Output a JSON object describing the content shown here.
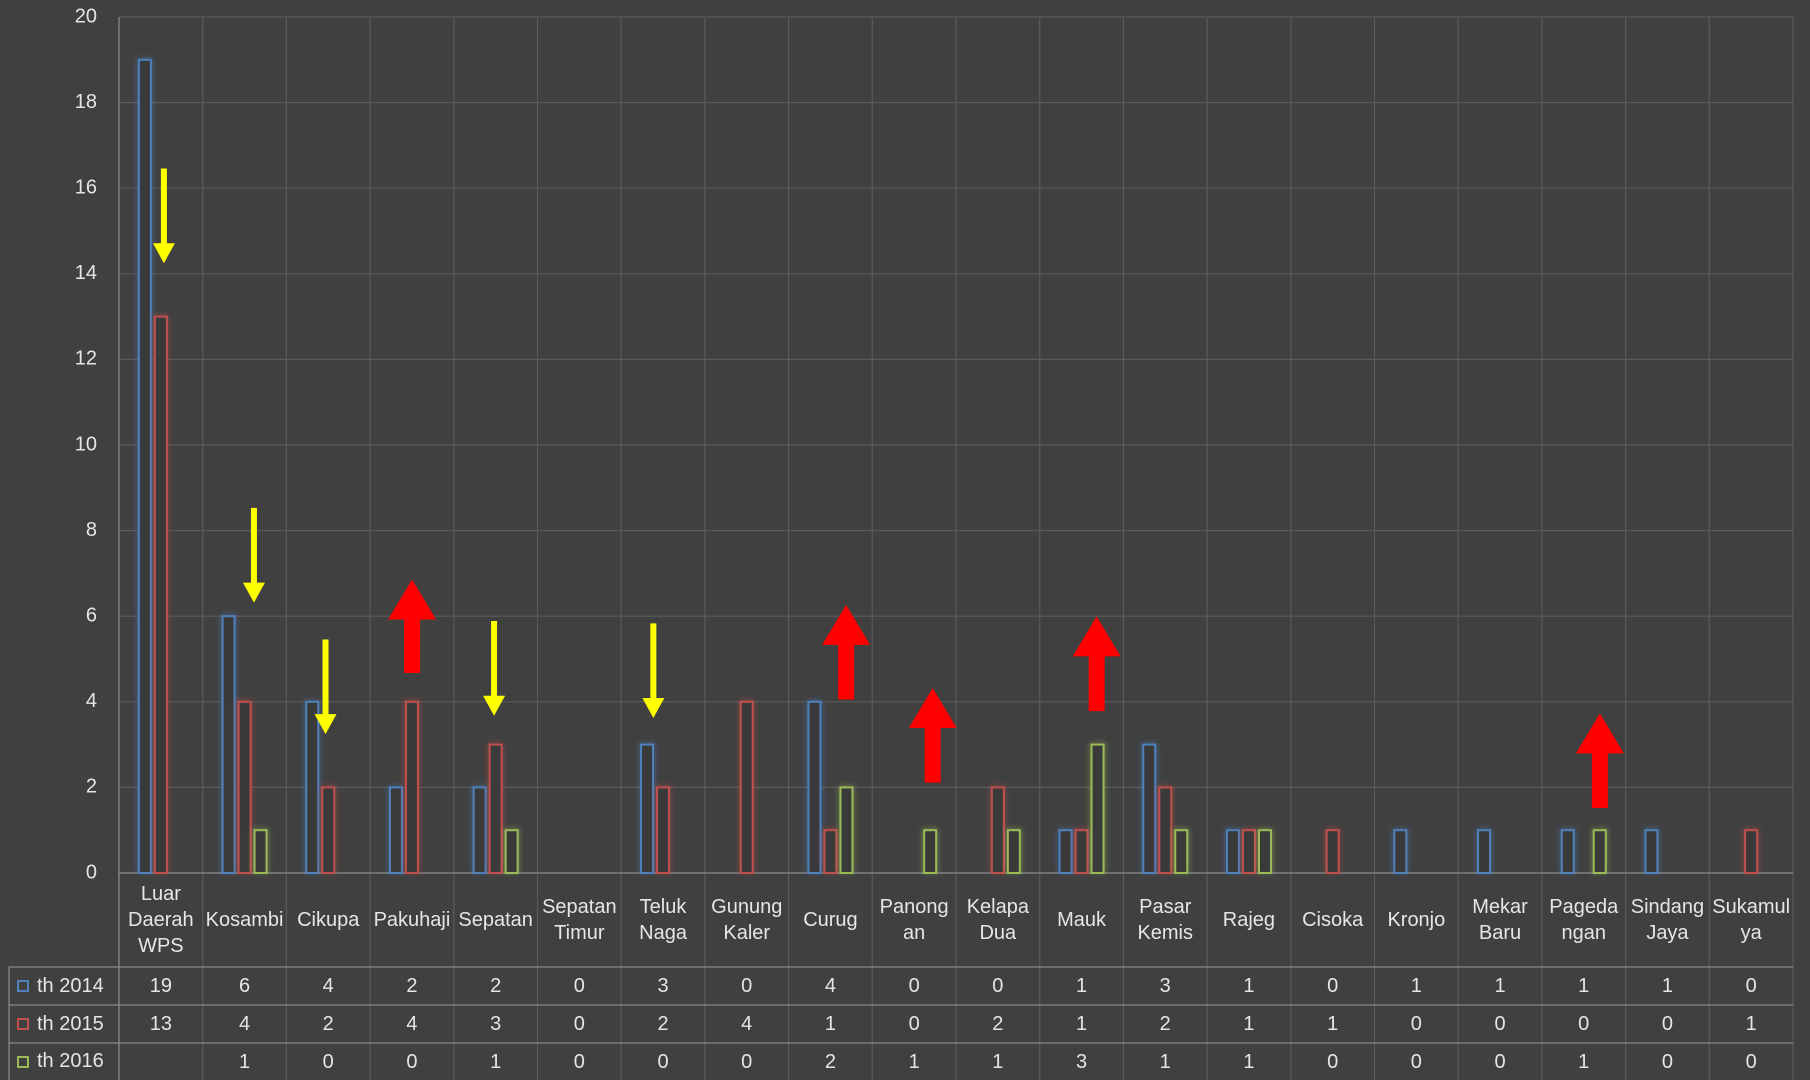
{
  "chart_data": {
    "type": "bar",
    "categories": [
      "Luar Daerah WPS",
      "Kosambi",
      "Cikupa",
      "Pakuhaji",
      "Sepatan",
      "Sepatan Timur",
      "Teluk Naga",
      "Gunung Kaler",
      "Curug",
      "Panongan",
      "Kelapa Dua",
      "Mauk",
      "Pasar Kemis",
      "Rajeg",
      "Cisoka",
      "Kronjo",
      "Mekar Baru",
      "Pagedangan",
      "Sindang Jaya",
      "Sukamulya"
    ],
    "series": [
      {
        "name": "th 2014",
        "color": "#4f81bd",
        "values": [
          19,
          6,
          4,
          2,
          2,
          0,
          3,
          0,
          4,
          0,
          0,
          1,
          3,
          1,
          0,
          1,
          1,
          1,
          1,
          0
        ]
      },
      {
        "name": "th 2015",
        "color": "#c0504d",
        "values": [
          13,
          4,
          2,
          4,
          3,
          0,
          2,
          4,
          1,
          0,
          2,
          1,
          2,
          1,
          1,
          0,
          0,
          0,
          0,
          1
        ]
      },
      {
        "name": "th 2016",
        "color": "#9bbb59",
        "values": [
          null,
          1,
          0,
          0,
          1,
          0,
          0,
          0,
          2,
          1,
          1,
          3,
          1,
          1,
          0,
          0,
          0,
          1,
          0,
          0
        ]
      }
    ],
    "ylim": [
      0,
      20
    ],
    "yticks": [
      0,
      2,
      4,
      6,
      8,
      10,
      12,
      14,
      16,
      18,
      20
    ],
    "grid": true,
    "legend": "bottom-left"
  }
}
